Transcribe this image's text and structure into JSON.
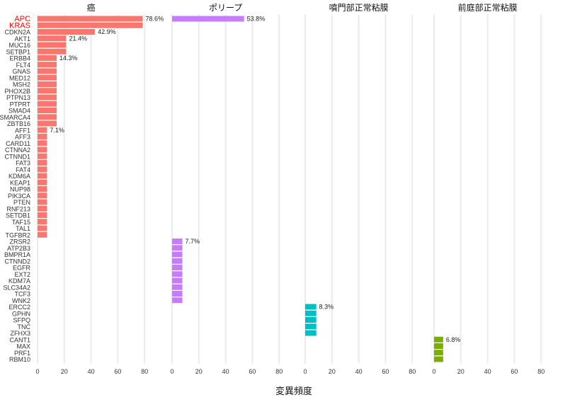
{
  "chart_data": {
    "type": "bar",
    "orientation": "horizontal",
    "xlabel": "変異頻度",
    "xticks": [
      0,
      20,
      40,
      60,
      80
    ],
    "xlim": [
      0,
      80
    ],
    "grid": true,
    "highlight_color": "#ff0000",
    "genes": [
      "APC",
      "KRAS",
      "CDKN2A",
      "AKT1",
      "MUC16",
      "SETBP1",
      "ERBB4",
      "FLT4",
      "GNAS",
      "MED12",
      "MSH2",
      "PHOX2B",
      "PTPN13",
      "PTPRT",
      "SMAD4",
      "SMARCA4",
      "ZBTB16",
      "AFF1",
      "AFF3",
      "CARD11",
      "CTNNA2",
      "CTNND1",
      "FAT3",
      "FAT4",
      "KDM6A",
      "KEAP1",
      "NUP98",
      "PIK3CA",
      "PTEN",
      "RNF213",
      "SETDB1",
      "TAF15",
      "TAL1",
      "TGFBR2",
      "ZRSR2",
      "ATP2B3",
      "BMPR1A",
      "CTNND2",
      "EGFR",
      "EXT2",
      "KDM7A",
      "SLC34A2",
      "TCF3",
      "WNK2",
      "ERCC2",
      "GPHN",
      "SFPQ",
      "TNC",
      "ZFHX3",
      "CANT1",
      "MAX",
      "PRF1",
      "RBM10"
    ],
    "highlighted_genes": [
      "APC",
      "KRAS"
    ],
    "panels": [
      {
        "title": "癌",
        "color": "#f8766d",
        "values": {
          "APC": 78.6,
          "KRAS": 78.6,
          "CDKN2A": 42.9,
          "AKT1": 21.4,
          "MUC16": 21.4,
          "SETBP1": 21.4,
          "ERBB4": 14.3,
          "FLT4": 14.3,
          "GNAS": 14.3,
          "MED12": 14.3,
          "MSH2": 14.3,
          "PHOX2B": 14.3,
          "PTPN13": 14.3,
          "PTPRT": 14.3,
          "SMAD4": 14.3,
          "SMARCA4": 14.3,
          "ZBTB16": 14.3,
          "AFF1": 7.1,
          "AFF3": 7.1,
          "CARD11": 7.1,
          "CTNNA2": 7.1,
          "CTNND1": 7.1,
          "FAT3": 7.1,
          "FAT4": 7.1,
          "KDM6A": 7.1,
          "KEAP1": 7.1,
          "NUP98": 7.1,
          "PIK3CA": 7.1,
          "PTEN": 7.1,
          "RNF213": 7.1,
          "SETDB1": 7.1,
          "TAF15": 7.1,
          "TAL1": 7.1,
          "TGFBR2": 7.1
        },
        "labels": [
          {
            "gene": "APC",
            "text": "78.6%"
          },
          {
            "gene": "CDKN2A",
            "text": "42.9%"
          },
          {
            "gene": "AKT1",
            "text": "21.4%"
          },
          {
            "gene": "ERBB4",
            "text": "14.3%"
          },
          {
            "gene": "AFF1",
            "text": "7.1%"
          }
        ]
      },
      {
        "title": "ポリープ",
        "color": "#c77cff",
        "values": {
          "APC": 53.8,
          "ZRSR2": 7.7,
          "ATP2B3": 7.7,
          "BMPR1A": 7.7,
          "CTNND2": 7.7,
          "EGFR": 7.7,
          "EXT2": 7.7,
          "KDM7A": 7.7,
          "SLC34A2": 7.7,
          "TCF3": 7.7,
          "WNK2": 7.7
        },
        "labels": [
          {
            "gene": "APC",
            "text": "53.8%"
          },
          {
            "gene": "ZRSR2",
            "text": "7.7%"
          }
        ]
      },
      {
        "title": "噴門部正常粘膜",
        "color": "#00bfc4",
        "values": {
          "ERCC2": 8.3,
          "GPHN": 8.3,
          "SFPQ": 8.3,
          "TNC": 8.3,
          "ZFHX3": 8.3
        },
        "labels": [
          {
            "gene": "ERCC2",
            "text": "8.3%"
          }
        ]
      },
      {
        "title": "前庭部正常粘膜",
        "color": "#7cae00",
        "values": {
          "CANT1": 6.8,
          "MAX": 6.8,
          "PRF1": 6.8,
          "RBM10": 6.8
        },
        "labels": [
          {
            "gene": "CANT1",
            "text": "6.8%"
          }
        ]
      }
    ]
  }
}
